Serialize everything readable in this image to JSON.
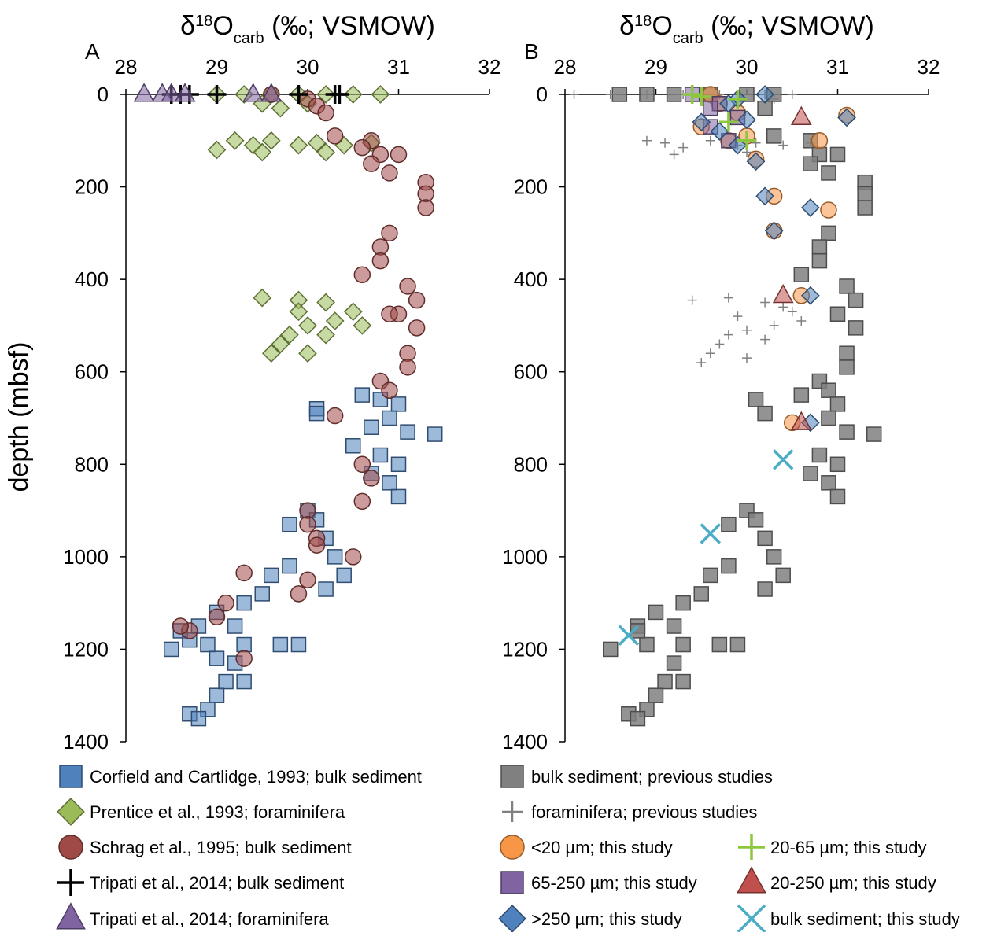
{
  "chart_data": [
    {
      "type": "scatter",
      "panel_label": "A",
      "title_parts": [
        "δ",
        "18",
        "O",
        "carb",
        " (‰; VSMOW)"
      ],
      "y_label": "depth (mbsf)",
      "xlim": [
        28,
        32
      ],
      "xticks": [
        28,
        29,
        30,
        31,
        32
      ],
      "ylim": [
        0,
        1400
      ],
      "yticks": [
        0,
        200,
        400,
        600,
        800,
        1000,
        1200,
        1400
      ],
      "y_inverted": true,
      "x_axis_position": "top",
      "series": [
        {
          "name": "Corfield and Cartlidge, 1993; bulk sediment",
          "marker": "square",
          "color": "#4f81bd",
          "x": [
            30.6,
            30.8,
            31.0,
            30.9,
            30.7,
            31.1,
            31.4,
            30.5,
            30.8,
            31.0,
            30.7,
            30.9,
            31.0,
            30.1,
            30.1,
            30.0,
            29.8,
            30.1,
            30.2,
            30.3,
            29.8,
            29.6,
            29.5,
            29.3,
            29.0,
            29.2,
            28.8,
            28.6,
            28.5,
            28.9,
            29.3,
            29.7,
            29.9,
            29.2,
            29.1,
            29.3,
            29.0,
            28.9,
            28.7,
            28.8,
            29.0,
            28.7,
            30.4,
            30.2
          ],
          "y": [
            650,
            660,
            670,
            700,
            720,
            730,
            735,
            760,
            780,
            800,
            820,
            840,
            870,
            680,
            690,
            900,
            930,
            920,
            960,
            1000,
            1020,
            1040,
            1080,
            1100,
            1120,
            1150,
            1150,
            1160,
            1200,
            1190,
            1190,
            1190,
            1190,
            1230,
            1270,
            1270,
            1300,
            1330,
            1340,
            1350,
            1220,
            1180,
            1040,
            1070
          ]
        },
        {
          "name": "Prentice et al., 1993; foraminifera",
          "marker": "diamond",
          "color": "#9bbb59",
          "x": [
            29.0,
            29.3,
            29.6,
            29.9,
            30.2,
            30.5,
            30.8,
            29.5,
            30.0,
            29.7,
            29.0,
            29.2,
            29.4,
            29.6,
            29.9,
            30.1,
            30.4,
            30.7,
            29.5,
            30.2,
            29.5,
            29.9,
            30.2,
            30.5,
            30.6,
            30.3,
            30.0,
            29.8,
            29.7,
            29.6,
            30.0,
            30.2,
            29.9
          ],
          "y": [
            0,
            0,
            0,
            0,
            0,
            0,
            0,
            20,
            20,
            30,
            120,
            100,
            110,
            100,
            110,
            105,
            110,
            105,
            125,
            125,
            440,
            445,
            450,
            470,
            500,
            490,
            500,
            520,
            540,
            560,
            560,
            520,
            470
          ]
        },
        {
          "name": "Schrag et al., 1995; bulk sediment",
          "marker": "circle",
          "color": "#a04a48",
          "x": [
            30.0,
            30.1,
            30.2,
            29.6,
            30.3,
            30.7,
            30.6,
            30.8,
            31.0,
            30.7,
            30.9,
            31.3,
            31.3,
            31.3,
            30.9,
            30.8,
            30.8,
            30.6,
            31.1,
            31.2,
            31.0,
            30.9,
            31.2,
            31.1,
            31.1,
            30.8,
            30.9,
            30.3,
            30.6,
            30.7,
            30.6,
            30.0,
            30.0,
            30.1,
            30.1,
            30.5,
            29.3,
            30.0,
            29.9,
            29.1,
            29.0,
            28.7,
            28.6,
            29.3
          ],
          "y": [
            10,
            25,
            40,
            0,
            90,
            100,
            115,
            130,
            130,
            150,
            170,
            190,
            215,
            245,
            300,
            330,
            360,
            390,
            415,
            445,
            475,
            475,
            505,
            560,
            590,
            620,
            640,
            695,
            800,
            830,
            880,
            900,
            930,
            960,
            975,
            1000,
            1035,
            1050,
            1080,
            1100,
            1130,
            1160,
            1150,
            1220
          ]
        },
        {
          "name": "Tripati et al., 2014; bulk sediment",
          "marker": "plus",
          "color": "#000000",
          "x": [
            28.5,
            28.6,
            28.7,
            29.0,
            29.9,
            30.3,
            30.35
          ],
          "y": [
            0,
            0,
            0,
            0,
            0,
            0,
            0
          ]
        },
        {
          "name": "Tripati et al., 2014; foraminifera",
          "marker": "triangle",
          "color": "#8064a2",
          "x": [
            28.2,
            28.4,
            28.5,
            28.65,
            29.4,
            29.6
          ],
          "y": [
            0,
            0,
            0,
            0,
            0,
            0
          ]
        }
      ]
    },
    {
      "type": "scatter",
      "panel_label": "B",
      "title_parts": [
        "δ",
        "18",
        "O",
        "carb",
        " (‰; VSMOW)"
      ],
      "xlim": [
        28,
        32
      ],
      "xticks": [
        28,
        29,
        30,
        31,
        32
      ],
      "ylim": [
        0,
        1400
      ],
      "yticks": [
        0,
        200,
        400,
        600,
        800,
        1000,
        1200,
        1400
      ],
      "y_inverted": true,
      "x_axis_position": "top",
      "series": [
        {
          "name": "bulk sediment; previous studies",
          "marker": "square",
          "color": "#808080",
          "x": [
            28.6,
            28.9,
            29.2,
            29.6,
            30.0,
            30.3,
            30.2,
            30.3,
            30.7,
            30.8,
            31.0,
            30.7,
            30.9,
            31.3,
            31.3,
            31.3,
            30.9,
            30.8,
            30.8,
            30.6,
            31.1,
            31.2,
            31.0,
            31.2,
            31.1,
            31.1,
            30.8,
            30.9,
            30.6,
            31.0,
            30.9,
            31.1,
            31.4,
            30.8,
            31.0,
            30.7,
            30.9,
            31.0,
            30.1,
            30.2,
            30.0,
            29.8,
            30.1,
            30.2,
            30.3,
            29.8,
            29.6,
            29.5,
            29.3,
            29.0,
            29.2,
            28.8,
            28.5,
            28.9,
            29.3,
            29.7,
            29.2,
            29.1,
            29.3,
            29.0,
            28.9,
            28.7,
            28.8,
            30.4,
            30.2,
            29.9,
            28.8
          ],
          "y": [
            0,
            0,
            0,
            0,
            0,
            0,
            30,
            90,
            100,
            130,
            130,
            150,
            170,
            190,
            215,
            245,
            300,
            330,
            360,
            390,
            415,
            445,
            475,
            505,
            560,
            590,
            620,
            640,
            650,
            670,
            700,
            730,
            735,
            780,
            800,
            820,
            840,
            870,
            660,
            690,
            900,
            930,
            920,
            960,
            1000,
            1020,
            1040,
            1080,
            1100,
            1120,
            1150,
            1150,
            1200,
            1190,
            1190,
            1190,
            1230,
            1270,
            1270,
            1300,
            1330,
            1340,
            1350,
            1040,
            1070,
            1190,
            1160
          ]
        },
        {
          "name": "foraminifera; previous studies",
          "marker": "smallplus",
          "color": "#808080",
          "x": [
            28.1,
            28.5,
            28.9,
            29.3,
            29.7,
            30.2,
            30.5,
            29.6,
            30.3,
            28.9,
            29.1,
            29.3,
            29.6,
            29.9,
            30.1,
            30.4,
            30.7,
            29.2,
            30.0,
            29.4,
            29.8,
            30.2,
            30.5,
            30.6,
            30.3,
            30.0,
            29.8,
            29.7,
            29.6,
            30.0,
            30.2,
            29.9,
            30.4,
            29.5
          ],
          "y": [
            0,
            0,
            0,
            0,
            0,
            0,
            0,
            10,
            10,
            100,
            105,
            115,
            100,
            110,
            105,
            110,
            105,
            130,
            125,
            445,
            440,
            450,
            470,
            490,
            500,
            510,
            520,
            540,
            560,
            570,
            530,
            480,
            460,
            580
          ]
        },
        {
          "name": "<20 µm; this study",
          "marker": "circle",
          "color": "#f79646",
          "x": [
            29.6,
            29.7,
            29.9,
            29.5,
            30.0,
            29.8,
            30.1,
            30.3,
            30.3,
            30.9,
            30.8,
            31.1,
            30.6,
            30.5
          ],
          "y": [
            0,
            20,
            40,
            70,
            90,
            100,
            140,
            220,
            295,
            250,
            100,
            45,
            435,
            710
          ]
        },
        {
          "name": "65-250 µm; this study",
          "marker": "square",
          "color": "#8064a2",
          "x": [
            29.4,
            29.7,
            29.9,
            29.6,
            29.8,
            29.6
          ],
          "y": [
            0,
            20,
            50,
            70,
            100,
            30
          ]
        },
        {
          "name": ">250 µm; this study",
          "marker": "diamond",
          "color": "#4f81bd",
          "x": [
            29.9,
            30.2,
            29.5,
            29.7,
            30.0,
            29.9,
            30.1,
            30.2,
            30.3,
            30.7,
            31.1,
            30.7,
            30.7,
            29.8
          ],
          "y": [
            10,
            0,
            60,
            80,
            55,
            110,
            145,
            220,
            295,
            245,
            50,
            435,
            710,
            20
          ]
        },
        {
          "name": "20-65 µm; this study",
          "marker": "plus",
          "color": "#8dc63f",
          "x": [
            29.4,
            29.5,
            29.8,
            30.0,
            29.9
          ],
          "y": [
            0,
            5,
            60,
            100,
            10
          ]
        },
        {
          "name": "20-250 µm; this study",
          "marker": "triangle",
          "color": "#c0504d",
          "x": [
            30.6,
            30.4,
            30.6
          ],
          "y": [
            50,
            435,
            710
          ]
        },
        {
          "name": "bulk sediment; this study",
          "marker": "cross",
          "color": "#4bacc6",
          "x": [
            30.4,
            29.6,
            28.7
          ],
          "y": [
            790,
            950,
            1170
          ]
        }
      ]
    }
  ]
}
